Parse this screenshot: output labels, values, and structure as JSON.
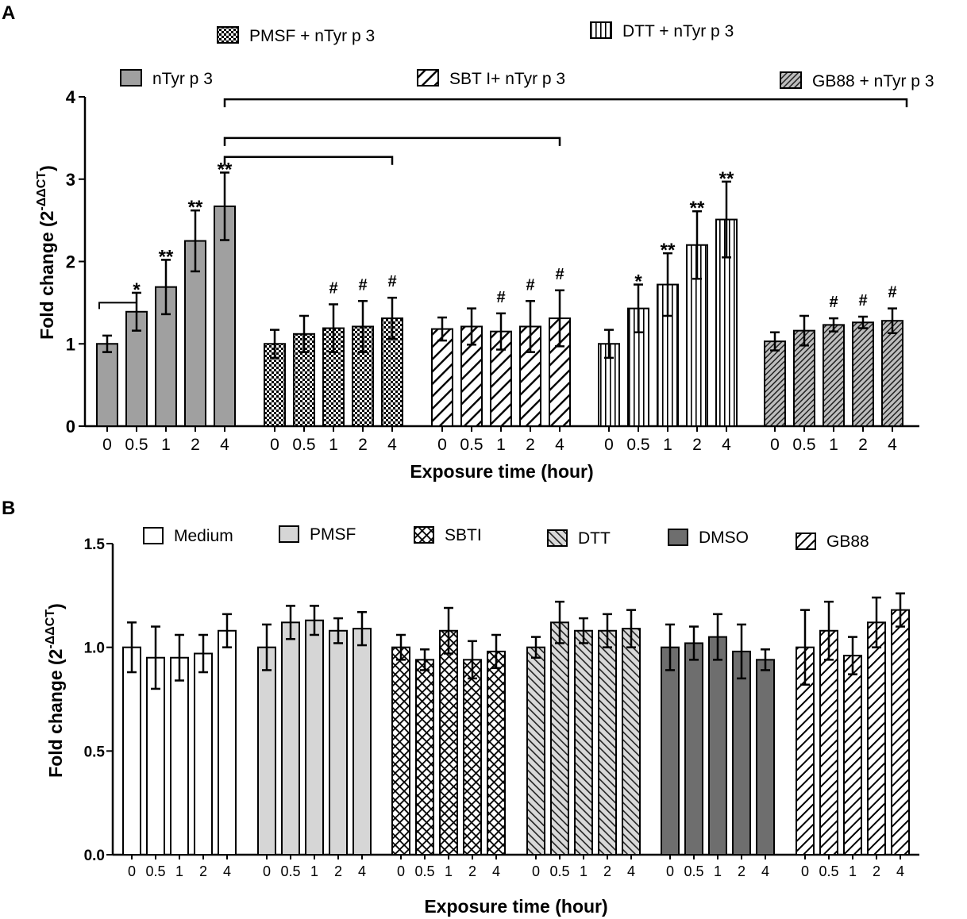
{
  "chart_data": [
    {
      "id": "A",
      "panel_label": "A",
      "type": "bar",
      "x_axis_title": "Exposure time (hour)",
      "y_axis_title_main": "Fold change (2",
      "y_axis_title_sup": "-ΔΔCT",
      "y_axis_title_close": ")",
      "ylim": [
        0,
        4
      ],
      "yticks": [
        "0",
        "1",
        "2",
        "3",
        "4"
      ],
      "categories": [
        "0",
        "0.5",
        "1",
        "2",
        "4"
      ],
      "series": [
        {
          "name": "nTyr p 3",
          "pattern": "grey",
          "values": [
            1.0,
            1.39,
            1.69,
            2.25,
            2.67
          ],
          "errors": [
            0.1,
            0.23,
            0.33,
            0.37,
            0.41
          ],
          "marks": [
            "",
            "*",
            "**",
            "**",
            "**"
          ]
        },
        {
          "name": "PMSF + nTyr p 3",
          "pattern": "checker",
          "values": [
            1.0,
            1.12,
            1.19,
            1.21,
            1.31
          ],
          "errors": [
            0.17,
            0.22,
            0.29,
            0.31,
            0.25
          ],
          "marks": [
            "",
            "",
            "#",
            "#",
            "#"
          ]
        },
        {
          "name": "SBT I+ nTyr p 3",
          "pattern": "diag-wide",
          "values": [
            1.18,
            1.21,
            1.15,
            1.21,
            1.31
          ],
          "errors": [
            0.14,
            0.22,
            0.22,
            0.31,
            0.34
          ],
          "marks": [
            "",
            "",
            "#",
            "#",
            "#"
          ]
        },
        {
          "name": "DTT + nTyr p 3",
          "pattern": "vertical",
          "values": [
            1.0,
            1.43,
            1.72,
            2.2,
            2.51
          ],
          "errors": [
            0.17,
            0.29,
            0.38,
            0.41,
            0.46
          ],
          "marks": [
            "",
            "*",
            "**",
            "**",
            "**"
          ]
        },
        {
          "name": "GB88 + nTyr p 3",
          "pattern": "diag-grey",
          "values": [
            1.03,
            1.16,
            1.23,
            1.26,
            1.28
          ],
          "errors": [
            0.11,
            0.18,
            0.08,
            0.07,
            0.15
          ],
          "marks": [
            "",
            "",
            "#",
            "#",
            "#"
          ]
        }
      ],
      "comparison_brackets": [
        {
          "from": "nTyr p 3 @ 0",
          "to": "nTyr p 3 @ 0.5"
        },
        {
          "from": "nTyr p 3 @ 4",
          "to": "PMSF + nTyr p 3 @ 4"
        },
        {
          "from": "nTyr p 3 @ 4",
          "to": "SBT I+ nTyr p 3 @ 4"
        },
        {
          "from": "nTyr p 3 @ 4",
          "to": "GB88 + nTyr p 3 @ 4"
        }
      ]
    },
    {
      "id": "B",
      "panel_label": "B",
      "type": "bar",
      "x_axis_title": "Exposure time (hour)",
      "y_axis_title_main": "Fold change (2",
      "y_axis_title_sup": "-ΔΔCT",
      "y_axis_title_close": ")",
      "ylim": [
        0,
        1.5
      ],
      "yticks": [
        "0.0",
        "0.5",
        "1.0",
        "1.5"
      ],
      "categories": [
        "0",
        "0.5",
        "1",
        "2",
        "4"
      ],
      "series": [
        {
          "name": "Medium",
          "pattern": "white",
          "values": [
            1.0,
            0.95,
            0.95,
            0.97,
            1.08
          ],
          "errors": [
            0.12,
            0.15,
            0.11,
            0.09,
            0.08
          ]
        },
        {
          "name": "PMSF",
          "pattern": "lightgrey",
          "values": [
            1.0,
            1.12,
            1.13,
            1.08,
            1.09
          ],
          "errors": [
            0.11,
            0.08,
            0.07,
            0.06,
            0.08
          ]
        },
        {
          "name": "SBTI",
          "pattern": "crosshatch",
          "values": [
            1.0,
            0.94,
            1.08,
            0.94,
            0.98
          ],
          "errors": [
            0.06,
            0.05,
            0.11,
            0.09,
            0.08
          ]
        },
        {
          "name": "DTT",
          "pattern": "diag-back",
          "values": [
            1.0,
            1.12,
            1.08,
            1.08,
            1.09
          ],
          "errors": [
            0.05,
            0.1,
            0.06,
            0.08,
            0.09
          ]
        },
        {
          "name": "DMSO",
          "pattern": "darkgrey",
          "values": [
            1.0,
            1.02,
            1.05,
            0.98,
            0.94
          ],
          "errors": [
            0.11,
            0.08,
            0.11,
            0.13,
            0.05
          ]
        },
        {
          "name": "GB88",
          "pattern": "diag-fwd",
          "values": [
            1.0,
            1.08,
            0.96,
            1.12,
            1.18
          ],
          "errors": [
            0.18,
            0.14,
            0.09,
            0.12,
            0.08
          ]
        }
      ]
    }
  ]
}
